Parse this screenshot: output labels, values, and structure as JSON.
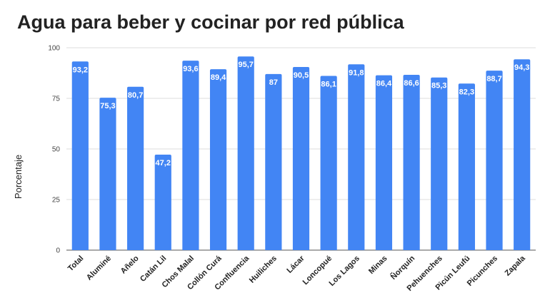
{
  "chart_data": {
    "type": "bar",
    "title": "Agua para beber y cocinar por red pública",
    "xlabel": "",
    "ylabel": "Porcentaje",
    "ylim": [
      0,
      100
    ],
    "yticks": [
      0,
      25,
      50,
      75,
      100
    ],
    "grid": true,
    "legend": "none",
    "bar_color": "#4285f4",
    "categories": [
      "Total",
      "Aluminé",
      "Añelo",
      "Catán Lil",
      "Chos Malal",
      "Collón Curá",
      "Confluencia",
      "Huiliches",
      "Lácar",
      "Loncopué",
      "Los Lagos",
      "Minas",
      "Ñorquín",
      "Pehuenches",
      "Picún Leufú",
      "Picunches",
      "Zapala"
    ],
    "values": [
      93.2,
      75.3,
      80.7,
      47.2,
      93.6,
      89.4,
      95.7,
      87,
      90.5,
      86.1,
      91.8,
      86.4,
      86.6,
      85.3,
      82.3,
      88.7,
      94.3
    ],
    "data_labels": [
      "93,2",
      "75,3",
      "80,7",
      "47,2",
      "93,6",
      "89,4",
      "95,7",
      "87",
      "90,5",
      "86,1",
      "91,8",
      "86,4",
      "86,6",
      "85,3",
      "82,3",
      "88,7",
      "94,3"
    ]
  }
}
